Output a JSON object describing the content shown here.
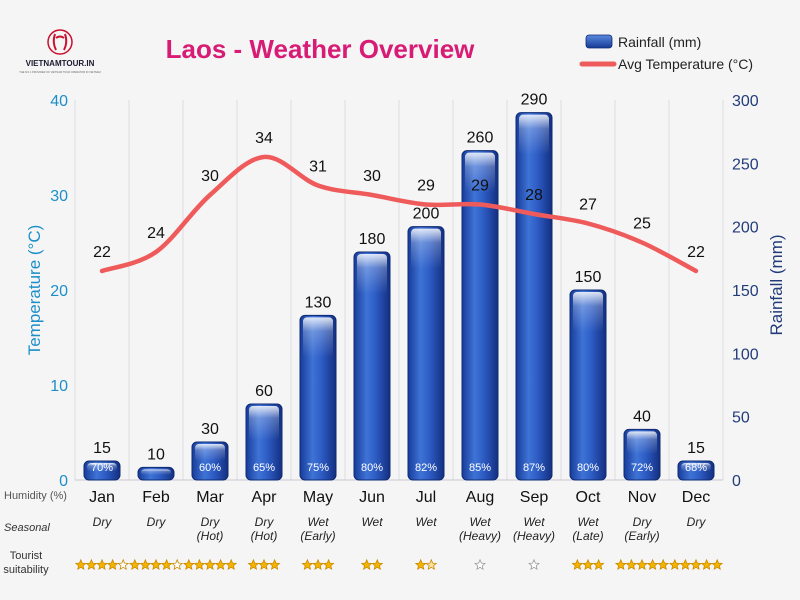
{
  "logo": {
    "name": "VIETNAMTOUR.IN",
    "tagline": "THE NO.1 PROVIDER OF VIETNAM TOUR OPERATOR IN VIETNAM"
  },
  "chart_data": {
    "type": "bar",
    "title": "Laos - Weather Overview",
    "title_color": "#d81b74",
    "categories": [
      "Jan",
      "Feb",
      "Mar",
      "Apr",
      "May",
      "Jun",
      "Jul",
      "Aug",
      "Sep",
      "Oct",
      "Nov",
      "Dec"
    ],
    "series": [
      {
        "name": "Rainfall (mm)",
        "type": "bar",
        "axis": "right",
        "color": "#1f49b5",
        "values": [
          15,
          10,
          30,
          60,
          130,
          180,
          200,
          260,
          290,
          150,
          40,
          15
        ]
      },
      {
        "name": "Avg Temperature (°C)",
        "type": "line",
        "axis": "left",
        "color": "#ef5b5b",
        "values": [
          22,
          24,
          30,
          34,
          31,
          30,
          29,
          29,
          28,
          27,
          25,
          22
        ]
      }
    ],
    "y_left": {
      "label": "Temperature (°C)",
      "range": [
        0,
        40
      ],
      "ticks": [
        0,
        10,
        20,
        30,
        40
      ],
      "color": "#1c8fc8"
    },
    "y_right": {
      "label": "Rainfall (mm)",
      "range": [
        0,
        300
      ],
      "ticks": [
        0,
        50,
        100,
        150,
        200,
        250,
        300
      ],
      "color": "#223c7a"
    },
    "legend_position": "top-right",
    "grid": "vertical",
    "humidity": {
      "label": "Humidity (%)",
      "values": [
        "70%",
        "-",
        "60%",
        "65%",
        "75%",
        "80%",
        "82%",
        "85%",
        "87%",
        "80%",
        "72%",
        "68%"
      ]
    },
    "seasonal": {
      "label": "Seasonal",
      "values": [
        [
          "Dry"
        ],
        [
          "Dry"
        ],
        [
          "Dry",
          "(Hot)"
        ],
        [
          "Dry",
          "(Hot)"
        ],
        [
          "Wet",
          "(Early)"
        ],
        [
          "Wet"
        ],
        [
          "Wet"
        ],
        [
          "Wet",
          "(Heavy)"
        ],
        [
          "Wet",
          "(Heavy)"
        ],
        [
          "Wet",
          "(Late)"
        ],
        [
          "Dry",
          "(Early)"
        ],
        [
          "Dry"
        ]
      ]
    },
    "tourist_suitability": {
      "label": [
        "Tourist",
        "suitability"
      ],
      "max": 5,
      "values": [
        4,
        4,
        5,
        3,
        3,
        2,
        1.5,
        0,
        0,
        3,
        5,
        5
      ]
    }
  }
}
